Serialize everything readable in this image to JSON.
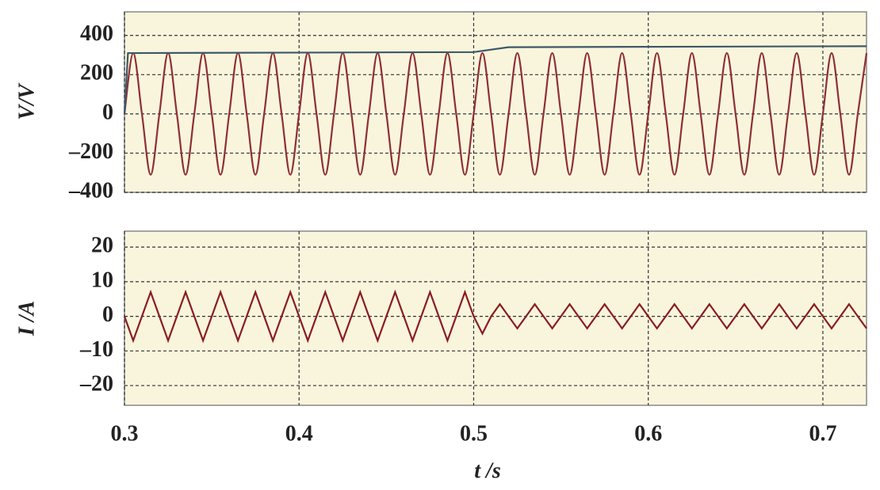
{
  "chart_data": [
    {
      "type": "line",
      "y_label": "V/V",
      "xlim": [
        0.3,
        0.725
      ],
      "ylim": [
        -400,
        520
      ],
      "xticks": [
        0.3,
        0.4,
        0.5,
        0.6,
        0.7
      ],
      "yticks": [
        400,
        200,
        0,
        {
          "value": -200,
          "label": "–200"
        },
        {
          "value": -400,
          "label": "–400"
        }
      ],
      "grid": true,
      "series": [
        {
          "color": "#8e2f35",
          "smooth": true,
          "x": [
            0.3,
            0.305,
            0.31,
            0.315,
            0.32,
            0.325,
            0.33,
            0.335,
            0.34,
            0.345,
            0.35,
            0.355,
            0.36,
            0.365,
            0.37,
            0.375,
            0.38,
            0.385,
            0.39,
            0.395,
            0.4,
            0.405,
            0.41,
            0.415,
            0.42,
            0.425,
            0.43,
            0.435,
            0.44,
            0.445,
            0.45,
            0.455,
            0.46,
            0.465,
            0.47,
            0.475,
            0.48,
            0.485,
            0.49,
            0.495,
            0.5,
            0.505,
            0.51,
            0.515,
            0.52,
            0.525,
            0.53,
            0.535,
            0.54,
            0.545,
            0.55,
            0.555,
            0.56,
            0.565,
            0.57,
            0.575,
            0.58,
            0.585,
            0.59,
            0.595,
            0.6,
            0.605,
            0.61,
            0.615,
            0.62,
            0.625,
            0.63,
            0.635,
            0.64,
            0.645,
            0.65,
            0.655,
            0.66,
            0.665,
            0.67,
            0.675,
            0.68,
            0.685,
            0.69,
            0.695,
            0.7,
            0.705,
            0.71,
            0.715,
            0.72,
            0.725
          ],
          "values": [
            0,
            310,
            0,
            -310,
            0,
            310,
            0,
            -310,
            0,
            310,
            0,
            -310,
            0,
            310,
            0,
            -310,
            0,
            310,
            0,
            -310,
            0,
            310,
            0,
            -310,
            0,
            310,
            0,
            -310,
            0,
            310,
            0,
            -310,
            0,
            310,
            0,
            -310,
            0,
            310,
            0,
            -310,
            0,
            310,
            0,
            -310,
            0,
            310,
            0,
            -310,
            0,
            310,
            0,
            -310,
            0,
            310,
            0,
            -310,
            0,
            310,
            0,
            -310,
            0,
            310,
            0,
            -310,
            0,
            310,
            0,
            -310,
            0,
            310,
            0,
            -310,
            0,
            310,
            0,
            -310,
            0,
            310,
            0,
            -310,
            0,
            310,
            0,
            -310,
            0,
            310
          ]
        },
        {
          "color": "#3d5868",
          "smooth": false,
          "x": [
            0.3,
            0.302,
            0.5,
            0.52,
            0.725
          ],
          "values": [
            0,
            310,
            315,
            340,
            345
          ]
        }
      ]
    },
    {
      "type": "line",
      "y_label": "I /A",
      "x_label": "t /s",
      "xlim": [
        0.3,
        0.725
      ],
      "ylim": [
        -25.7,
        24.6
      ],
      "xticks": [
        0.3,
        0.4,
        0.5,
        0.6,
        0.7
      ],
      "yticks": [
        20,
        10,
        0,
        {
          "value": -10,
          "label": "–10"
        },
        {
          "value": -20,
          "label": "–20"
        }
      ],
      "grid": true,
      "series": [
        {
          "color": "#8a1c22",
          "smooth": false,
          "x": [
            0.3,
            0.305,
            0.31,
            0.315,
            0.32,
            0.325,
            0.33,
            0.335,
            0.34,
            0.345,
            0.35,
            0.355,
            0.36,
            0.365,
            0.37,
            0.375,
            0.38,
            0.385,
            0.39,
            0.395,
            0.4,
            0.405,
            0.41,
            0.415,
            0.42,
            0.425,
            0.43,
            0.435,
            0.44,
            0.445,
            0.45,
            0.455,
            0.46,
            0.465,
            0.47,
            0.475,
            0.48,
            0.485,
            0.49,
            0.495,
            0.5,
            0.505,
            0.51,
            0.515,
            0.52,
            0.525,
            0.53,
            0.535,
            0.54,
            0.545,
            0.55,
            0.555,
            0.56,
            0.565,
            0.57,
            0.575,
            0.58,
            0.585,
            0.59,
            0.595,
            0.6,
            0.605,
            0.61,
            0.615,
            0.62,
            0.625,
            0.63,
            0.635,
            0.64,
            0.645,
            0.65,
            0.655,
            0.66,
            0.665,
            0.67,
            0.675,
            0.68,
            0.685,
            0.69,
            0.695,
            0.7,
            0.705,
            0.71,
            0.715,
            0.72,
            0.725
          ],
          "values": [
            0,
            -7,
            0,
            7,
            0,
            -7,
            0,
            7,
            0,
            -7,
            0,
            7,
            0,
            -7,
            0,
            7,
            0,
            -7,
            0,
            7,
            0,
            -7,
            0,
            7,
            0,
            -7,
            0,
            7,
            0,
            -7,
            0,
            7,
            0,
            -7,
            0,
            7,
            0,
            -7,
            0,
            7,
            0,
            -5,
            0,
            3.5,
            0,
            -3.5,
            0,
            3.5,
            0,
            -3.5,
            0,
            3.5,
            0,
            -3.5,
            0,
            3.5,
            0,
            -3.5,
            0,
            3.5,
            0,
            -3.5,
            0,
            3.5,
            0,
            -3.5,
            0,
            3.5,
            0,
            -3.5,
            0,
            3.5,
            0,
            -3.5,
            0,
            3.5,
            0,
            -3.5,
            0,
            3.5,
            0,
            -3.5,
            0,
            3.5,
            0,
            -3.5
          ]
        }
      ]
    }
  ]
}
